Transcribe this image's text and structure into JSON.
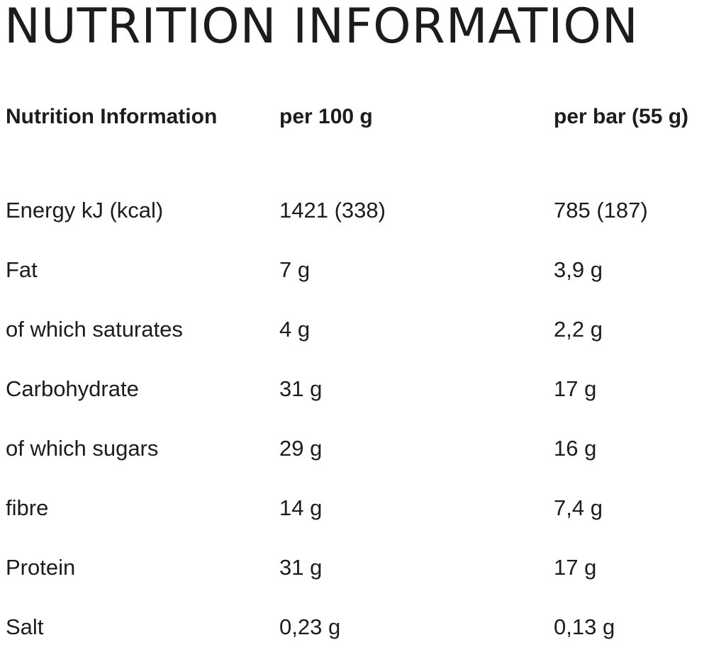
{
  "title": "NUTRITION INFORMATION",
  "table": {
    "headers": [
      "Nutrition Information",
      "per 100 g",
      "per bar (55 g)"
    ],
    "rows": [
      {
        "label": "Energy kJ (kcal)",
        "per_100g": "1421 (338)",
        "per_bar": "785 (187)"
      },
      {
        "label": "Fat",
        "per_100g": "7 g",
        "per_bar": "3,9 g"
      },
      {
        "label": "of which saturates",
        "per_100g": "4 g",
        "per_bar": "2,2 g"
      },
      {
        "label": "Carbohydrate",
        "per_100g": "31 g",
        "per_bar": "17 g"
      },
      {
        "label": "of which sugars",
        "per_100g": "29 g",
        "per_bar": "16 g"
      },
      {
        "label": "fibre",
        "per_100g": "14 g",
        "per_bar": "7,4 g"
      },
      {
        "label": "Protein",
        "per_100g": "31 g",
        "per_bar": "17 g"
      },
      {
        "label": "Salt",
        "per_100g": "0,23 g",
        "per_bar": "0,13 g"
      }
    ]
  }
}
